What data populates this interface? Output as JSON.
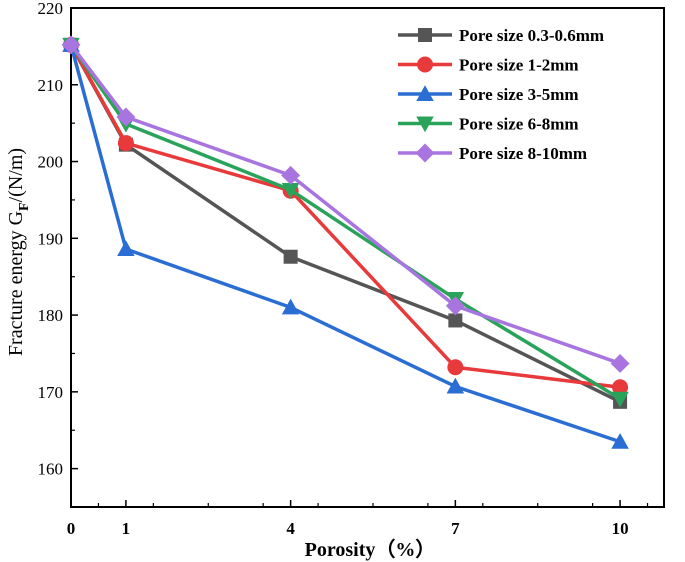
{
  "chart_data": {
    "type": "line",
    "xlabel": "Porosity（%）",
    "ylabel_main": "Fracture energy G",
    "ylabel_sub": "F",
    "ylabel_unit": "/(N/m)",
    "x": [
      0,
      1,
      4,
      7,
      10
    ],
    "x_tick_labels": [
      "0",
      "1",
      "4",
      "7",
      "10"
    ],
    "xlim": [
      0,
      10.8
    ],
    "ylim": [
      155,
      220
    ],
    "y_ticks": [
      160,
      170,
      180,
      190,
      200,
      210,
      220
    ],
    "legend_position": "top-right",
    "series": [
      {
        "name": "Pore size 0.3-0.6mm",
        "color": "#555555",
        "marker": "square",
        "values": [
          215.2,
          202.2,
          187.6,
          179.3,
          168.7
        ]
      },
      {
        "name": "Pore size 1-2mm",
        "color": "#e8393b",
        "marker": "circle",
        "values": [
          215.2,
          202.4,
          196.2,
          173.2,
          170.6
        ]
      },
      {
        "name": "Pore size 3-5mm",
        "color": "#2a6ed4",
        "marker": "triangle-up",
        "values": [
          215.2,
          188.6,
          181.0,
          170.7,
          163.5
        ]
      },
      {
        "name": "Pore size 6-8mm",
        "color": "#2aa35a",
        "marker": "triangle-down",
        "values": [
          215.2,
          204.9,
          196.3,
          182.1,
          169.1
        ]
      },
      {
        "name": "Pore size 8-10mm",
        "color": "#a875e0",
        "marker": "diamond",
        "values": [
          215.2,
          205.8,
          198.2,
          181.2,
          173.7
        ]
      }
    ]
  }
}
